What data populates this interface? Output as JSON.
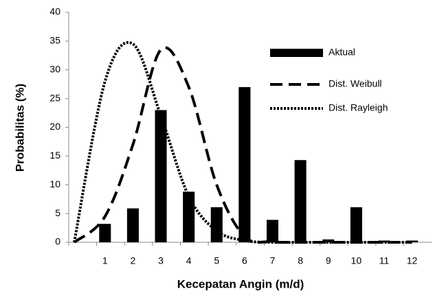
{
  "chart_data": {
    "type": "bar-line",
    "x_label": "Kecepatan Angin (m/d)",
    "y_label": "Probabilitas (%)",
    "categories": [
      null,
      "1",
      "2",
      "3",
      "4",
      "5",
      "6",
      "7",
      "8",
      "9",
      "10",
      "11",
      "12"
    ],
    "ylim": [
      0,
      40
    ],
    "yticks": [
      0,
      5,
      10,
      15,
      20,
      25,
      30,
      35,
      40
    ],
    "legend": "right",
    "series": [
      {
        "name": "Aktual",
        "kind": "bar",
        "color": "#000000",
        "values": [
          null,
          3.2,
          5.9,
          23,
          8.8,
          6.1,
          27,
          3.9,
          14.3,
          0.5,
          6.1,
          0.3,
          0.3
        ]
      },
      {
        "name": "Dist. Weibull",
        "kind": "line",
        "dash": "dashed",
        "color": "#000000",
        "values": [
          0,
          4.5,
          17,
          33.5,
          27,
          10,
          1,
          0.1,
          0,
          0,
          0,
          0,
          0
        ]
      },
      {
        "name": "Dist. Rayleigh",
        "kind": "line",
        "dash": "dotted",
        "color": "#000000",
        "values": [
          0,
          28,
          34.5,
          22,
          8,
          2,
          0.3,
          0,
          0,
          0,
          0,
          0,
          0
        ]
      }
    ]
  }
}
